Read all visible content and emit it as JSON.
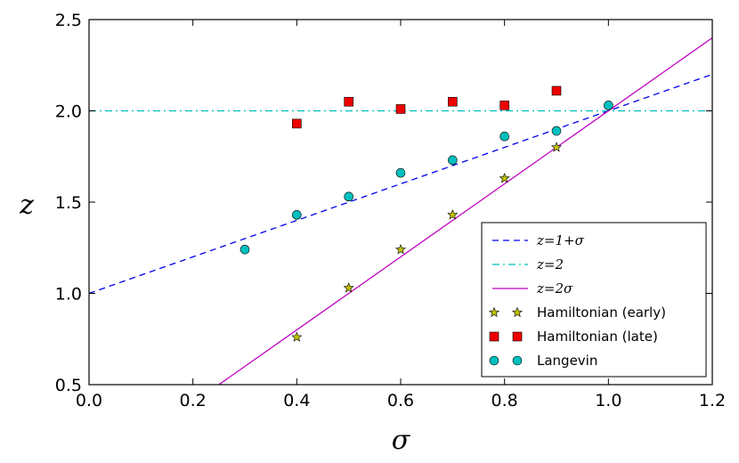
{
  "chart_data": {
    "type": "scatter",
    "title": "",
    "xlabel": "σ",
    "ylabel": "z",
    "xlim": [
      0.0,
      1.2
    ],
    "ylim": [
      0.5,
      2.5
    ],
    "grid": false,
    "xticks": [
      "0.0",
      "0.2",
      "0.4",
      "0.6",
      "0.8",
      "1.0",
      "1.2"
    ],
    "yticks": [
      "0.5",
      "1.0",
      "1.5",
      "2.0",
      "2.5"
    ],
    "legend_position": "lower-right",
    "series": [
      {
        "name": "z=1+σ",
        "kind": "line",
        "style": "dashed",
        "color": "#0000ee",
        "x": [
          0.0,
          1.2
        ],
        "y": [
          1.0,
          2.2
        ]
      },
      {
        "name": "z=2",
        "kind": "line",
        "style": "dashdot",
        "color": "#00bfbf",
        "x": [
          0.0,
          1.2
        ],
        "y": [
          2.0,
          2.0
        ]
      },
      {
        "name": "z=2σ",
        "kind": "line",
        "style": "solid",
        "color": "#bf00bf",
        "x": [
          0.25,
          1.2
        ],
        "y": [
          0.5,
          2.4
        ]
      },
      {
        "name": "Hamiltonian (early)",
        "kind": "scatter",
        "marker": "star",
        "color": "#bfbf00",
        "x": [
          0.4,
          0.5,
          0.6,
          0.7,
          0.8,
          0.9
        ],
        "y": [
          0.76,
          1.03,
          1.24,
          1.43,
          1.63,
          1.8
        ]
      },
      {
        "name": "Hamiltonian (late)",
        "kind": "scatter",
        "marker": "square",
        "color": "#ee0000",
        "x": [
          0.4,
          0.5,
          0.6,
          0.7,
          0.8,
          0.9
        ],
        "y": [
          1.93,
          2.05,
          2.01,
          2.05,
          2.03,
          2.11
        ]
      },
      {
        "name": "Langevin",
        "kind": "scatter",
        "marker": "circle",
        "color": "#00bfbf",
        "x": [
          0.3,
          0.4,
          0.5,
          0.6,
          0.7,
          0.8,
          0.9,
          1.0
        ],
        "y": [
          1.24,
          1.43,
          1.53,
          1.66,
          1.73,
          1.86,
          1.89,
          2.03
        ]
      }
    ]
  }
}
